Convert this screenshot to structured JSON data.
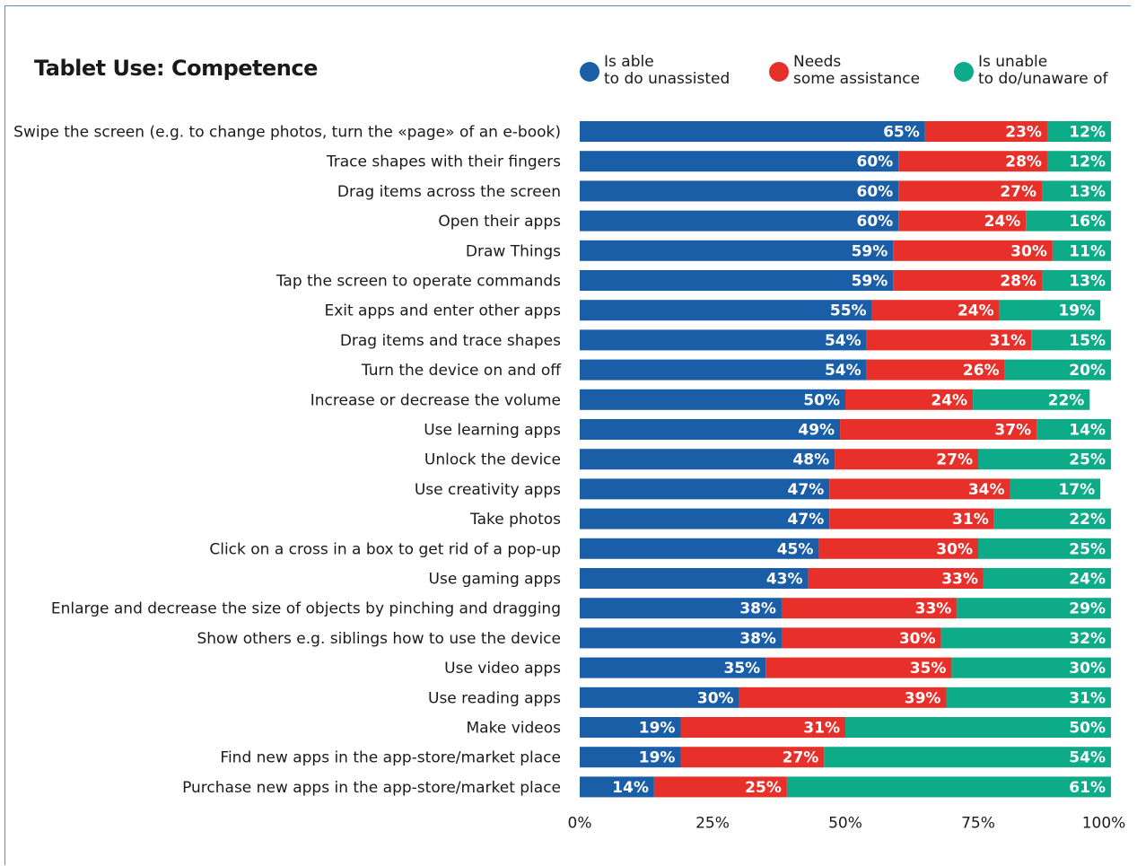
{
  "chart_data": {
    "type": "bar",
    "orientation": "horizontal",
    "stacked": true,
    "percent_stacked": true,
    "title": "Tablet Use: Competence",
    "categories": [
      "Swipe the screen (e.g. to change photos, turn the «page» of an e-book)",
      "Trace shapes with their fingers",
      "Drag items across the screen",
      "Open their apps",
      "Draw Things",
      "Tap the screen to operate commands",
      "Exit apps and enter other apps",
      "Drag items and trace shapes",
      "Turn the device on and off",
      "Increase or decrease the volume",
      "Use learning apps",
      "Unlock the device",
      "Use creativity apps",
      "Take photos",
      "Click on a cross in a box to get rid of a pop-up",
      "Use gaming apps",
      "Enlarge and decrease the size of objects by pinching and dragging",
      "Show others e.g. siblings how to use the device",
      "Use video apps",
      "Use reading apps",
      "Make videos",
      "Find new apps in the app-store/market place",
      "Purchase new apps in the app-store/market place"
    ],
    "series": [
      {
        "name": "Is able\nto do unassisted",
        "color": "#1a5ea8",
        "values": [
          65,
          60,
          60,
          60,
          59,
          59,
          55,
          54,
          54,
          50,
          49,
          48,
          47,
          47,
          45,
          43,
          38,
          38,
          35,
          30,
          19,
          19,
          14
        ]
      },
      {
        "name": "Needs\nsome assistance",
        "color": "#e8302a",
        "values": [
          23,
          28,
          27,
          24,
          30,
          28,
          24,
          31,
          26,
          24,
          37,
          27,
          34,
          31,
          30,
          33,
          33,
          30,
          35,
          39,
          31,
          27,
          25
        ]
      },
      {
        "name": "Is unable\nto do/unaware of",
        "color": "#0eab88",
        "values": [
          12,
          12,
          13,
          16,
          11,
          13,
          19,
          15,
          20,
          22,
          14,
          25,
          17,
          22,
          25,
          24,
          29,
          32,
          30,
          31,
          50,
          54,
          61
        ]
      }
    ],
    "xlim": [
      0,
      100
    ],
    "xticks": [
      "0%",
      "25%",
      "50%",
      "75%",
      "100%"
    ],
    "value_suffix": "%",
    "legend_position": "top-right",
    "grid": false
  }
}
